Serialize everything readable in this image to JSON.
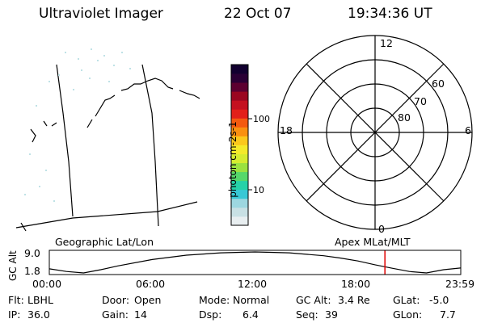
{
  "header": {
    "title": "Ultraviolet Imager",
    "date": "22 Oct 07",
    "time": "19:34:36 UT"
  },
  "colorbar": {
    "ylabel": "photon cm-2s-1",
    "ticks": [
      "100",
      "10"
    ],
    "scale": "log",
    "colors": [
      "#e8eef0",
      "#c8e0e4",
      "#9dd7e0",
      "#38c8d6",
      "#26d2a8",
      "#56d86a",
      "#9be240",
      "#d6ec30",
      "#f4ea2a",
      "#fbc81c",
      "#fa9010",
      "#f45a10",
      "#e2201a",
      "#c41020",
      "#9a0620",
      "#5c0030",
      "#2a0035",
      "#120030"
    ]
  },
  "left_map": {
    "label": "Geographic Lat/Lon"
  },
  "polar_plot": {
    "label": "Apex MLat/MLT",
    "mlt_labels": {
      "top": "12",
      "left": "18",
      "right": "6",
      "bottom": "0"
    },
    "lat_labels": [
      "60",
      "70",
      "80"
    ]
  },
  "altitude_plot": {
    "ylabel": "GC Alt",
    "yticks": [
      "9.0",
      "1.8"
    ],
    "xticks": [
      "00:00",
      "06:00",
      "12:00",
      "18:00",
      "23:59"
    ],
    "marker_color": "#e00000"
  },
  "chart_data": {
    "type": "line",
    "title": "",
    "xlabel": "",
    "ylabel": "GC Alt",
    "ylim": [
      1.8,
      9.0
    ],
    "xlim_hours": [
      0,
      24
    ],
    "x": [
      0,
      1,
      2,
      3,
      4,
      6,
      8,
      10,
      12,
      14,
      16,
      17,
      18,
      19,
      20,
      21,
      22,
      23,
      23.98
    ],
    "values": [
      3.2,
      2.3,
      1.8,
      2.9,
      4.2,
      6.4,
      7.9,
      8.7,
      9.0,
      8.7,
      7.7,
      6.9,
      5.9,
      4.6,
      3.4,
      2.3,
      1.8,
      2.9,
      3.5
    ],
    "marker_time": "19:34:36"
  },
  "footer": {
    "row1": [
      {
        "key": "Flt:",
        "value": "LBHL"
      },
      {
        "key": "Door:",
        "value": "Open"
      },
      {
        "key": "Mode:",
        "value": "Normal"
      },
      {
        "key": "GC Alt:",
        "value": "3.4 Re"
      },
      {
        "key": "GLat:",
        "value": "-5.0"
      }
    ],
    "row2": [
      {
        "key": "IP:",
        "value": "36.0"
      },
      {
        "key": "Gain:",
        "value": "14"
      },
      {
        "key": "Dsp:",
        "value": "6.4"
      },
      {
        "key": "Seq:",
        "value": "39"
      },
      {
        "key": "GLon:",
        "value": "7.7"
      }
    ]
  }
}
